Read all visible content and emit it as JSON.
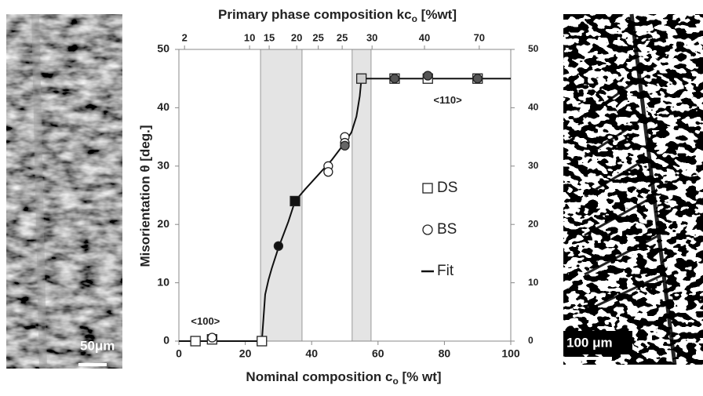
{
  "chart_data": {
    "type": "scatter",
    "top_label": [
      "Primary phase composition kc",
      "o",
      " [%wt]"
    ],
    "xlabel": [
      "Nominal composition c",
      "o",
      " [% wt]"
    ],
    "ylabel": "Misorientation θ [deg.]",
    "xlim": [
      0,
      100
    ],
    "ylim": [
      0,
      50
    ],
    "y2lim": [
      0,
      50
    ],
    "xticks": [
      0,
      20,
      40,
      60,
      80,
      100
    ],
    "yticks": [
      0,
      10,
      20,
      30,
      40,
      50
    ],
    "y2ticks": [
      0,
      10,
      20,
      30,
      40,
      50
    ],
    "top_ticks": [
      {
        "value": 1.7,
        "label": "2"
      },
      {
        "value": 21.3,
        "label": "10"
      },
      {
        "value": 27.2,
        "label": "15"
      },
      {
        "value": 35.5,
        "label": "20"
      },
      {
        "value": 42,
        "label": "25"
      },
      {
        "value": 49.2,
        "label": "25"
      },
      {
        "value": 58.2,
        "label": "30"
      },
      {
        "value": 74,
        "label": "40"
      },
      {
        "value": 90.5,
        "label": "70"
      }
    ],
    "bands": [
      [
        24.6,
        37.1
      ],
      [
        52.2,
        57.9
      ]
    ],
    "series": [
      {
        "name": "DS",
        "marker": "square",
        "color": "#222",
        "x": [
          5,
          10,
          25,
          35,
          55,
          65,
          75,
          90
        ],
        "values": [
          0,
          0.3,
          0,
          24,
          45,
          45,
          45,
          45
        ],
        "fills": [
          "#fff",
          "#fff",
          "#fff",
          "#111",
          "#ccc",
          "#fff",
          "#fff",
          "#fff"
        ]
      },
      {
        "name": "BS",
        "marker": "circle",
        "color": "#222",
        "x": [
          10,
          30,
          45,
          45,
          50,
          50,
          50,
          65,
          75,
          90
        ],
        "values": [
          0.6,
          16.3,
          30,
          29,
          35,
          34,
          33.5,
          45,
          45.5,
          45
        ],
        "fills": [
          "#fff",
          "#111",
          "#fff",
          "#fff",
          "#fff",
          "#fff",
          "#666",
          "#555",
          "#555",
          "#555"
        ]
      },
      {
        "name": "Fit",
        "marker": "line",
        "color": "#111",
        "x": [
          0,
          25,
          25.5,
          26,
          27,
          28,
          30,
          33,
          35,
          38,
          42,
          46,
          50,
          52,
          53.5,
          54.5,
          55,
          100
        ],
        "values": [
          0,
          0,
          4,
          8,
          10.5,
          12.5,
          16,
          20.5,
          24,
          26,
          28.5,
          31,
          34,
          35.8,
          38.5,
          42,
          45,
          45
        ]
      }
    ],
    "annotations": [
      {
        "text": "<100>",
        "x": 8,
        "y": 3.3
      },
      {
        "text": "<110>",
        "x": 81,
        "y": 41.2
      }
    ]
  },
  "micrographs": {
    "left_scale": "50μm",
    "right_scale": "100 μm"
  }
}
